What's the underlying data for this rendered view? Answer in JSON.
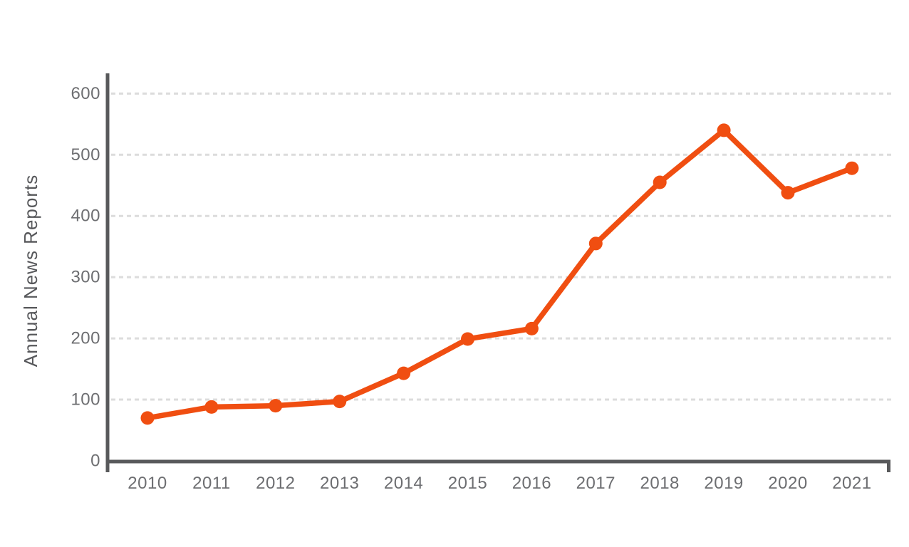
{
  "page": {
    "background_color": "#ffffff"
  },
  "chart_data": {
    "type": "line",
    "title": "",
    "xlabel": "",
    "ylabel": "Annual News Reports",
    "categories": [
      "2010",
      "2011",
      "2012",
      "2013",
      "2014",
      "2015",
      "2016",
      "2017",
      "2018",
      "2019",
      "2020",
      "2021"
    ],
    "series": [
      {
        "name": "Annual News Reports",
        "values": [
          70,
          88,
          90,
          97,
          143,
          199,
          216,
          355,
          455,
          540,
          438,
          478
        ]
      }
    ],
    "yticks": [
      0,
      100,
      200,
      300,
      400,
      500,
      600
    ],
    "ylim": [
      0,
      633
    ],
    "grid": "horizontal-dashed",
    "legend_position": "none",
    "line_color": "#f04e11",
    "marker_shape": "circle",
    "axis_color": "#58595b",
    "tick_label_color": "#6d6e71",
    "gridline_color": "#dcdcdc"
  }
}
